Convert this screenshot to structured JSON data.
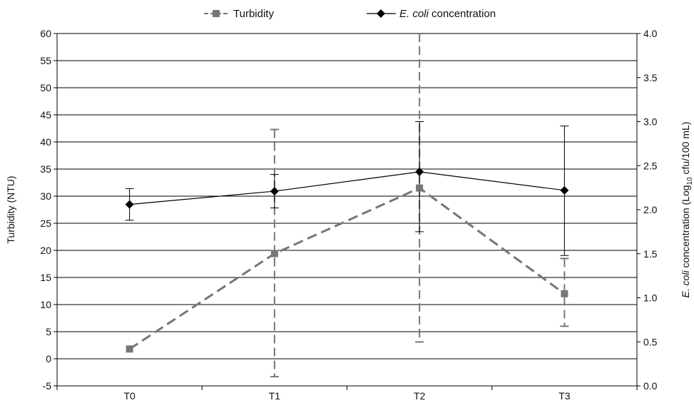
{
  "chart_data": {
    "type": "line",
    "categories": [
      "T0",
      "T1",
      "T2",
      "T3"
    ],
    "legend": {
      "placement": "top",
      "entries": [
        "Turbidity",
        "E. coli concentration"
      ]
    },
    "y_left": {
      "label": "Turbidity (NTU)",
      "range": [
        -5,
        60
      ],
      "ticks": [
        "-5",
        "0",
        "5",
        "10",
        "15",
        "20",
        "25",
        "30",
        "35",
        "40",
        "45",
        "50",
        "55",
        "60"
      ]
    },
    "y_right": {
      "label_italic": "E. coli",
      "label_pre_sub": " concentration (Log",
      "label_sub": "10",
      "label_post_sub": " cfu/100 mL)",
      "range": [
        0,
        4.0
      ],
      "ticks": [
        "0.0",
        "0.5",
        "1.0",
        "1.5",
        "2.0",
        "2.5",
        "3.0",
        "3.5",
        "4.0"
      ]
    },
    "grid": true,
    "series": [
      {
        "name": "Turbidity",
        "axis": "left",
        "style": "dashed",
        "color": "#777777",
        "marker": "square",
        "values": [
          1.8,
          19.4,
          31.5,
          12.0
        ],
        "err_low": [
          null,
          -3.3,
          3.1,
          6.0
        ],
        "err_high": [
          null,
          42.3,
          60.0,
          18.5
        ]
      },
      {
        "name_italic": "E. coli",
        "name_rest": " concentration",
        "axis": "right",
        "style": "solid",
        "color": "#000000",
        "marker": "diamond",
        "values": [
          2.06,
          2.21,
          2.43,
          2.22
        ],
        "err_low": [
          1.88,
          2.02,
          1.75,
          1.48
        ],
        "err_high": [
          2.24,
          2.4,
          3.0,
          2.95
        ]
      }
    ]
  }
}
